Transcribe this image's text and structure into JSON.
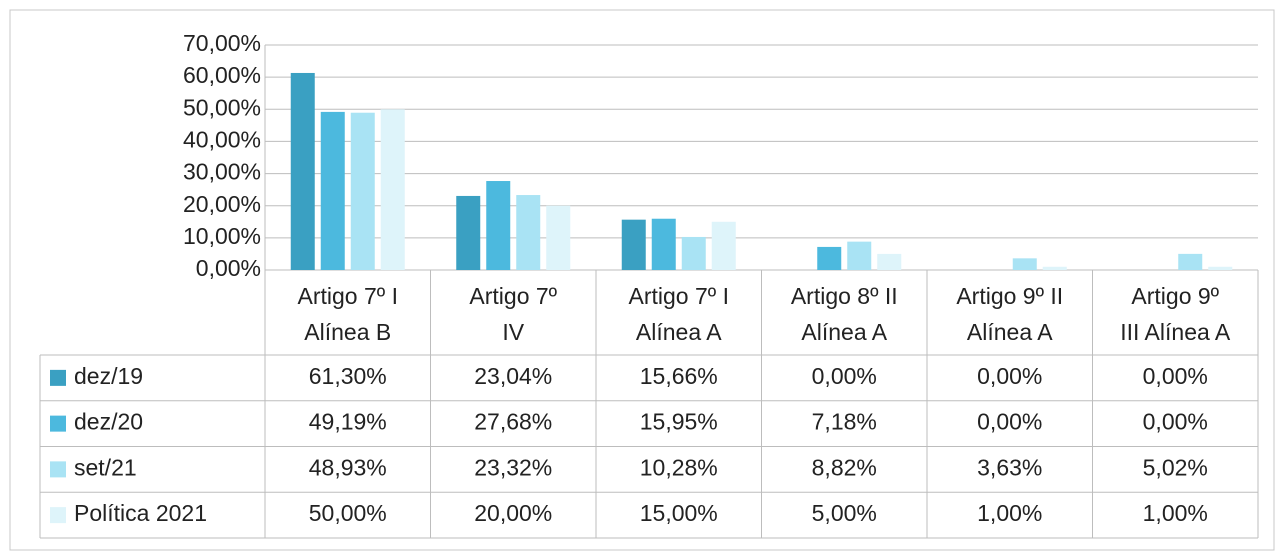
{
  "chart_data": {
    "type": "bar",
    "categories": [
      [
        "Artigo 7º I",
        "Alínea B"
      ],
      [
        "Artigo 7º",
        "IV"
      ],
      [
        "Artigo 7º I",
        "Alínea A"
      ],
      [
        "Artigo 8º II",
        "Alínea A"
      ],
      [
        "Artigo 9º II",
        "Alínea A"
      ],
      [
        "Artigo 9º",
        "III Alínea A"
      ]
    ],
    "series": [
      {
        "name": "dez/19",
        "color": "#3aa0c2",
        "values": [
          61.3,
          23.04,
          15.66,
          0.0,
          0.0,
          0.0
        ],
        "value_labels": [
          "61,30%",
          "23,04%",
          "15,66%",
          "0,00%",
          "0,00%",
          "0,00%"
        ]
      },
      {
        "name": "dez/20",
        "color": "#4cb9de",
        "values": [
          49.19,
          27.68,
          15.95,
          7.18,
          0.0,
          0.0
        ],
        "value_labels": [
          "49,19%",
          "27,68%",
          "15,95%",
          "7,18%",
          "0,00%",
          "0,00%"
        ]
      },
      {
        "name": "set/21",
        "color": "#a9e3f4",
        "values": [
          48.93,
          23.32,
          10.28,
          8.82,
          3.63,
          5.02
        ],
        "value_labels": [
          "48,93%",
          "23,32%",
          "10,28%",
          "8,82%",
          "3,63%",
          "5,02%"
        ]
      },
      {
        "name": "Política 2021",
        "color": "#def4fa",
        "values": [
          50.0,
          20.0,
          15.0,
          5.0,
          1.0,
          1.0
        ],
        "value_labels": [
          "50,00%",
          "20,00%",
          "15,00%",
          "5,00%",
          "1,00%",
          "1,00%"
        ]
      }
    ],
    "ylim": [
      0,
      70
    ],
    "yticks": [
      {
        "value": 0,
        "label": "0,00%"
      },
      {
        "value": 10,
        "label": "10,00%"
      },
      {
        "value": 20,
        "label": "20,00%"
      },
      {
        "value": 30,
        "label": "30,00%"
      },
      {
        "value": 40,
        "label": "40,00%"
      },
      {
        "value": 50,
        "label": "50,00%"
      },
      {
        "value": 60,
        "label": "60,00%"
      },
      {
        "value": 70,
        "label": "70,00%"
      }
    ],
    "grid": true
  }
}
